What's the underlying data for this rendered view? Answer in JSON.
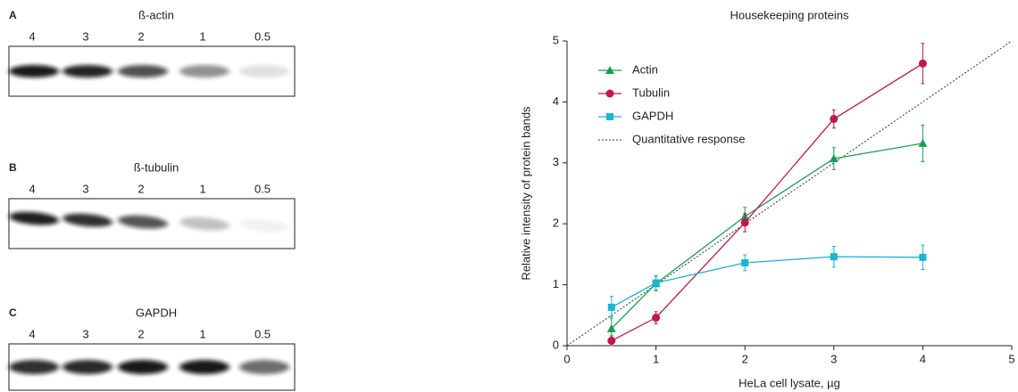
{
  "panels": [
    {
      "letter": "A",
      "title": "ß-actin",
      "lanes": [
        "4",
        "3",
        "2",
        "1",
        "0.5"
      ]
    },
    {
      "letter": "B",
      "title": "ß-tubulin",
      "lanes": [
        "4",
        "3",
        "2",
        "1",
        "0.5"
      ]
    },
    {
      "letter": "C",
      "title": "GAPDH",
      "lanes": [
        "4",
        "3",
        "2",
        "1",
        "0.5"
      ]
    }
  ],
  "chart_data": {
    "type": "line",
    "title": "Housekeeping proteins",
    "x_label": "HeLa cell lysate, µg",
    "y_label": "Relative intensity of protein bands",
    "x": [
      0.5,
      1,
      2,
      3,
      4
    ],
    "series": [
      {
        "name": "Actin",
        "color": "#1a9e50",
        "marker": "triangle",
        "values": [
          0.28,
          1.02,
          2.12,
          3.07,
          3.32
        ],
        "errors": [
          0.2,
          0.12,
          0.15,
          0.18,
          0.3
        ]
      },
      {
        "name": "Tubulin",
        "color": "#c0184a",
        "marker": "circle",
        "values": [
          0.08,
          0.46,
          2.02,
          3.72,
          4.63
        ],
        "errors": [
          0.08,
          0.1,
          0.15,
          0.15,
          0.33
        ]
      },
      {
        "name": "GAPDH",
        "color": "#1ab4d4",
        "marker": "square",
        "values": [
          0.63,
          1.03,
          1.36,
          1.46,
          1.45
        ],
        "errors": [
          0.18,
          0.12,
          0.13,
          0.17,
          0.2
        ]
      }
    ],
    "reference_line": {
      "name": "Quantitative response",
      "color": "#333333",
      "x": [
        0,
        5
      ],
      "values": [
        0,
        5
      ]
    },
    "xlim": [
      0,
      5
    ],
    "xticks": [
      0,
      1,
      2,
      3,
      4,
      5
    ],
    "ylim": [
      0,
      5
    ],
    "yticks": [
      0,
      1,
      2,
      3,
      4,
      5
    ],
    "grid": false,
    "legend": "top-left"
  }
}
